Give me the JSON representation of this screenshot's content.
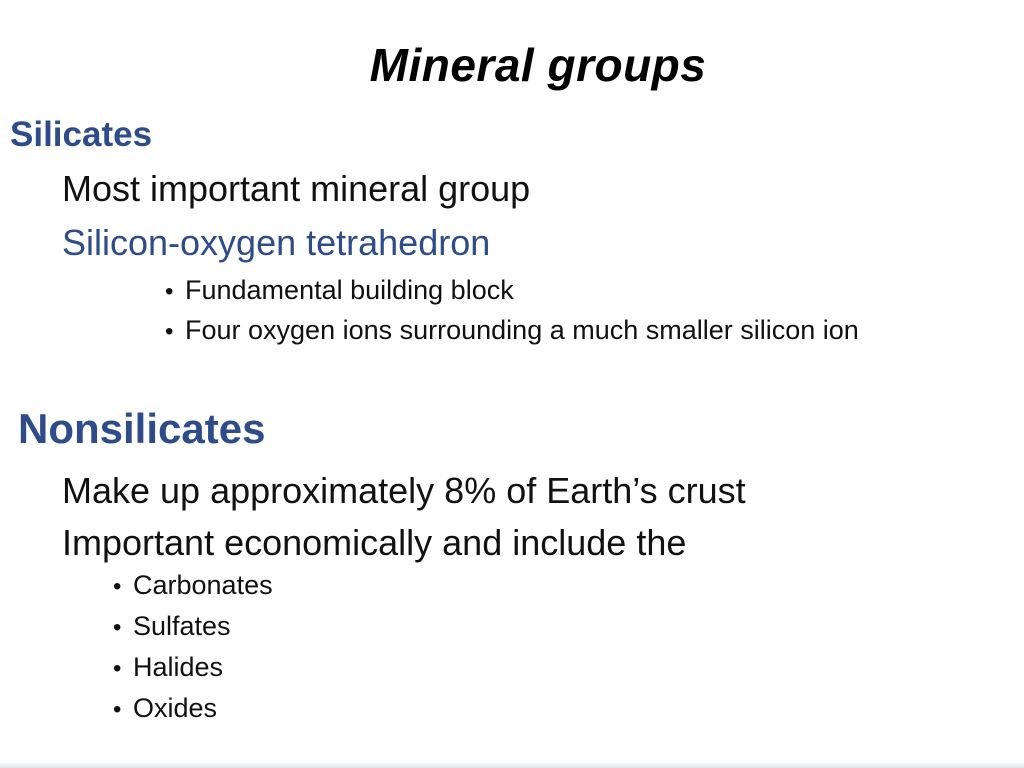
{
  "title": "Mineral groups",
  "silicates": {
    "heading": "Silicates",
    "points": [
      "Most important mineral group",
      "Silicon-oxygen tetrahedron"
    ],
    "subpoints": [
      "Fundamental building block",
      "Four oxygen ions surrounding a much smaller silicon ion"
    ]
  },
  "nonsilicates": {
    "heading": "Nonsilicates",
    "points": [
      "Make up approximately 8% of Earth’s crust",
      "Important economically and include the"
    ],
    "subpoints": [
      "Carbonates",
      "Sulfates",
      "Halides",
      "Oxides"
    ]
  },
  "colors": {
    "heading_blue": "#2e4b8a",
    "text": "#111111",
    "background": "#ffffff"
  }
}
